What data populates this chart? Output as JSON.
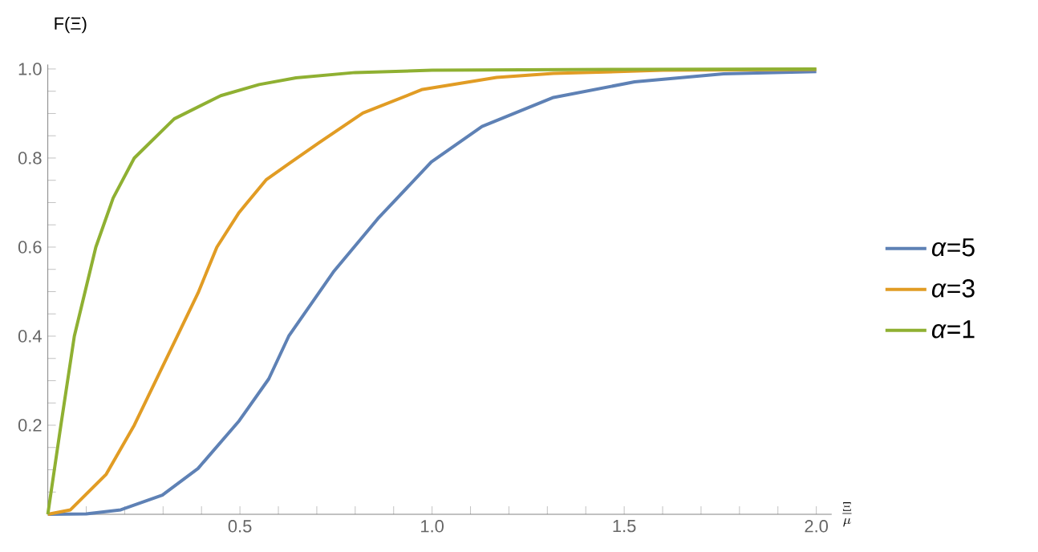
{
  "chart_data": {
    "type": "line",
    "ylabel": "F(Ξ)",
    "xlabel": "\\frac{\\Xi}{\\mu}",
    "xlim": [
      0,
      2.04
    ],
    "ylim": [
      0,
      1.01
    ],
    "xticks": [
      {
        "value": 0.1,
        "label": null
      },
      {
        "value": 0.2,
        "label": null
      },
      {
        "value": 0.3,
        "label": null
      },
      {
        "value": 0.4,
        "label": null
      },
      0.5,
      {
        "value": 0.6,
        "label": null
      },
      {
        "value": 0.7,
        "label": null
      },
      {
        "value": 0.8,
        "label": null
      },
      {
        "value": 0.9,
        "label": null
      },
      {
        "value": 1.0,
        "label": "1.0"
      },
      {
        "value": 1.1,
        "label": null
      },
      {
        "value": 1.2,
        "label": null
      },
      {
        "value": 1.3,
        "label": null
      },
      {
        "value": 1.4,
        "label": null
      },
      1.5,
      {
        "value": 1.6,
        "label": null
      },
      {
        "value": 1.7,
        "label": null
      },
      {
        "value": 1.8,
        "label": null
      },
      {
        "value": 1.9,
        "label": null
      },
      {
        "value": 2.0,
        "label": "2.0"
      }
    ],
    "yticks": [
      {
        "value": 0.05,
        "label": null
      },
      {
        "value": 0.1,
        "label": null
      },
      {
        "value": 0.15,
        "label": null
      },
      0.2,
      {
        "value": 0.25,
        "label": null
      },
      {
        "value": 0.3,
        "label": null
      },
      {
        "value": 0.35,
        "label": null
      },
      0.4,
      {
        "value": 0.45,
        "label": null
      },
      {
        "value": 0.5,
        "label": null
      },
      {
        "value": 0.55,
        "label": null
      },
      0.6,
      {
        "value": 0.65,
        "label": null
      },
      {
        "value": 0.7,
        "label": null
      },
      {
        "value": 0.75,
        "label": null
      },
      0.8,
      {
        "value": 0.85,
        "label": null
      },
      {
        "value": 0.9,
        "label": null
      },
      {
        "value": 0.95,
        "label": null
      },
      {
        "value": 1.0,
        "label": "1.0"
      }
    ],
    "grid": false,
    "legend": "right",
    "marker": "none",
    "line_style": "solid",
    "series": [
      {
        "name": "*α*=5",
        "color": "#5e81b5",
        "x": [
          0,
          0.1,
          0.19,
          0.298,
          0.391,
          0.498,
          0.575,
          0.627,
          0.743,
          0.859,
          0.998,
          1.13,
          1.316,
          1.527,
          1.759,
          2.0
        ],
        "values": [
          0,
          0.001,
          0.01,
          0.043,
          0.103,
          0.21,
          0.304,
          0.4,
          0.544,
          0.664,
          0.791,
          0.871,
          0.936,
          0.971,
          0.989,
          0.994
        ]
      },
      {
        "name": "*α*=3",
        "color": "#e19c24",
        "x": [
          0,
          0.059,
          0.152,
          0.225,
          0.283,
          0.337,
          0.391,
          0.44,
          0.498,
          0.568,
          0.627,
          0.705,
          0.82,
          0.975,
          1.168,
          1.316,
          1.6,
          2.0
        ],
        "values": [
          0,
          0.01,
          0.09,
          0.2,
          0.304,
          0.4,
          0.497,
          0.6,
          0.678,
          0.751,
          0.787,
          0.834,
          0.901,
          0.954,
          0.981,
          0.99,
          0.997,
          0.999
        ]
      },
      {
        "name": "*α*=1",
        "color": "#8fb032",
        "x": [
          0,
          0.034,
          0.069,
          0.125,
          0.17,
          0.225,
          0.329,
          0.45,
          0.55,
          0.646,
          0.8,
          1.0,
          1.5,
          2.0
        ],
        "values": [
          0,
          0.2,
          0.4,
          0.6,
          0.71,
          0.8,
          0.888,
          0.94,
          0.965,
          0.98,
          0.992,
          0.997,
          0.999,
          1.0
        ]
      }
    ]
  }
}
